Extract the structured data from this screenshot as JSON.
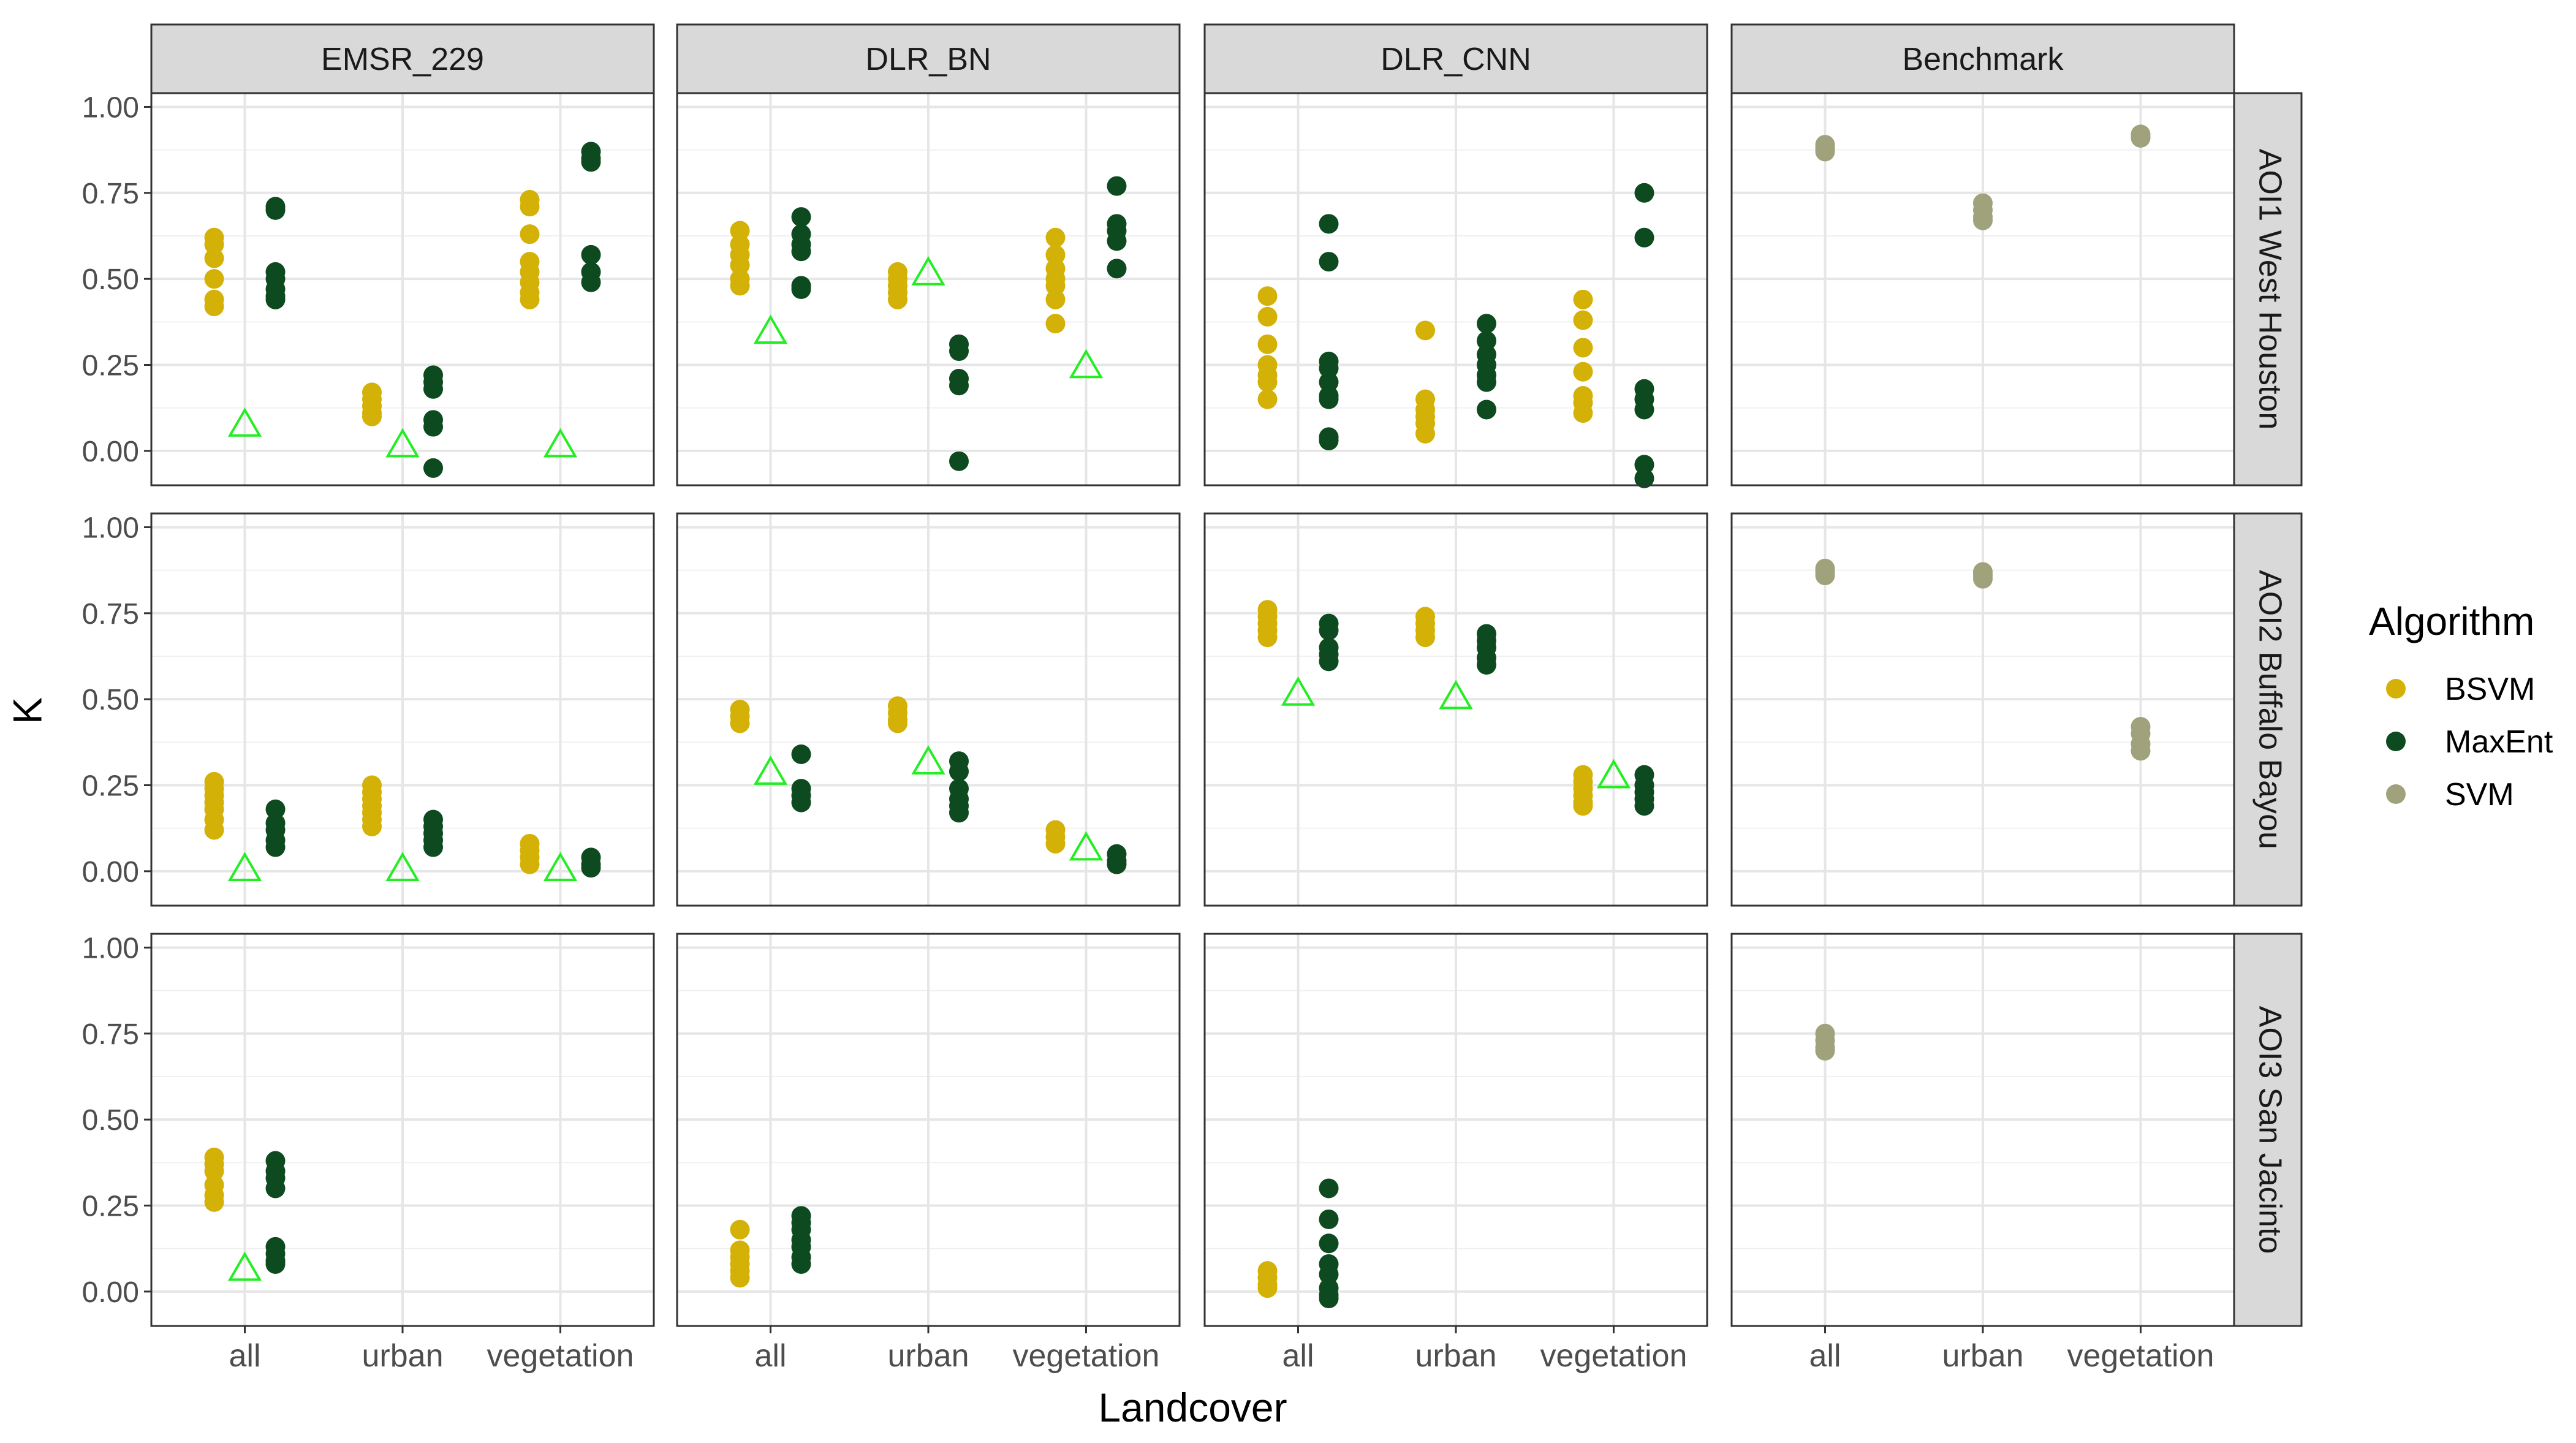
{
  "chart_data": {
    "type": "scatter",
    "xlabel": "Landcover",
    "ylabel": "K",
    "categories": [
      "all",
      "urban",
      "vegetation"
    ],
    "column_facets": [
      "EMSR_229",
      "DLR_BN",
      "DLR_CNN",
      "Benchmark"
    ],
    "row_facets": [
      "AOI1 West Houston",
      "AOI2 Buffalo Bayou",
      "AOI3 San Jacinto"
    ],
    "ylim": [
      -0.1,
      1.04
    ],
    "yticks": [
      0.0,
      0.25,
      0.5,
      0.75,
      1.0
    ],
    "ytick_labels": [
      "0.00",
      "0.25",
      "0.50",
      "0.75",
      "1.00"
    ],
    "grid": true,
    "legend": {
      "title": "Algorithm",
      "position": "right",
      "entries": [
        {
          "name": "BSVM",
          "color": "#d4b106"
        },
        {
          "name": "MaxEnt",
          "color": "#0d4a1f"
        },
        {
          "name": "SVM",
          "color": "#9fa27a"
        }
      ]
    },
    "reference_marker": {
      "shape": "triangle",
      "color": "#22ee22"
    },
    "panels": [
      {
        "row": 0,
        "col": 0,
        "facet": "EMSR_229",
        "region": "AOI1 West Houston",
        "series": [
          {
            "name": "BSVM",
            "points": {
              "all": [
                0.62,
                0.6,
                0.56,
                0.5,
                0.44,
                0.42
              ],
              "urban": [
                0.17,
                0.15,
                0.13,
                0.11,
                0.1
              ],
              "vegetation": [
                0.73,
                0.71,
                0.63,
                0.55,
                0.52,
                0.49,
                0.46,
                0.44
              ]
            }
          },
          {
            "name": "MaxEnt",
            "points": {
              "all": [
                0.71,
                0.7,
                0.52,
                0.5,
                0.47,
                0.45,
                0.44
              ],
              "urban": [
                0.22,
                0.2,
                0.18,
                0.09,
                0.07,
                -0.05
              ],
              "vegetation": [
                0.87,
                0.85,
                0.84,
                0.57,
                0.52,
                0.49
              ]
            }
          }
        ],
        "reference": {
          "all": 0.08,
          "urban": 0.02,
          "vegetation": 0.02
        }
      },
      {
        "row": 0,
        "col": 1,
        "facet": "DLR_BN",
        "region": "AOI1 West Houston",
        "series": [
          {
            "name": "BSVM",
            "points": {
              "all": [
                0.64,
                0.6,
                0.57,
                0.54,
                0.5,
                0.48
              ],
              "urban": [
                0.52,
                0.5,
                0.48,
                0.46,
                0.44
              ],
              "vegetation": [
                0.62,
                0.57,
                0.53,
                0.5,
                0.48,
                0.44,
                0.37
              ]
            }
          },
          {
            "name": "MaxEnt",
            "points": {
              "all": [
                0.68,
                0.63,
                0.6,
                0.58,
                0.48,
                0.47
              ],
              "urban": [
                0.31,
                0.29,
                0.21,
                0.19,
                -0.03
              ],
              "vegetation": [
                0.77,
                0.66,
                0.64,
                0.61,
                0.53
              ]
            }
          }
        ],
        "reference": {
          "all": 0.35,
          "urban": 0.52,
          "vegetation": 0.25
        }
      },
      {
        "row": 0,
        "col": 2,
        "facet": "DLR_CNN",
        "region": "AOI1 West Houston",
        "series": [
          {
            "name": "BSVM",
            "points": {
              "all": [
                0.45,
                0.39,
                0.31,
                0.25,
                0.22,
                0.2,
                0.15
              ],
              "urban": [
                0.35,
                0.15,
                0.12,
                0.1,
                0.08,
                0.05
              ],
              "vegetation": [
                0.44,
                0.38,
                0.3,
                0.23,
                0.16,
                0.14,
                0.11
              ]
            }
          },
          {
            "name": "MaxEnt",
            "points": {
              "all": [
                0.66,
                0.55,
                0.26,
                0.24,
                0.2,
                0.16,
                0.15,
                0.04,
                0.03
              ],
              "urban": [
                0.37,
                0.32,
                0.28,
                0.25,
                0.22,
                0.2,
                0.12
              ],
              "vegetation": [
                0.75,
                0.62,
                0.18,
                0.15,
                0.12,
                -0.04,
                -0.08
              ]
            }
          }
        ],
        "reference": null
      },
      {
        "row": 0,
        "col": 3,
        "facet": "Benchmark",
        "region": "AOI1 West Houston",
        "series": [
          {
            "name": "SVM",
            "points": {
              "all": [
                0.89,
                0.88,
                0.87
              ],
              "urban": [
                0.72,
                0.7,
                0.68,
                0.67
              ],
              "vegetation": [
                0.92,
                0.91
              ]
            }
          }
        ],
        "reference": null
      },
      {
        "row": 1,
        "col": 0,
        "facet": "EMSR_229",
        "region": "AOI2 Buffalo Bayou",
        "series": [
          {
            "name": "BSVM",
            "points": {
              "all": [
                0.26,
                0.24,
                0.22,
                0.2,
                0.18,
                0.15,
                0.12
              ],
              "urban": [
                0.25,
                0.23,
                0.21,
                0.19,
                0.17,
                0.15,
                0.13
              ],
              "vegetation": [
                0.08,
                0.06,
                0.04,
                0.02
              ]
            }
          },
          {
            "name": "MaxEnt",
            "points": {
              "all": [
                0.18,
                0.14,
                0.12,
                0.09,
                0.07
              ],
              "urban": [
                0.15,
                0.13,
                0.11,
                0.09,
                0.07
              ],
              "vegetation": [
                0.04,
                0.02,
                0.01
              ]
            }
          }
        ],
        "reference": {
          "all": 0.01,
          "urban": 0.01,
          "vegetation": 0.01
        }
      },
      {
        "row": 1,
        "col": 1,
        "facet": "DLR_BN",
        "region": "AOI2 Buffalo Bayou",
        "series": [
          {
            "name": "BSVM",
            "points": {
              "all": [
                0.47,
                0.45,
                0.43
              ],
              "urban": [
                0.48,
                0.46,
                0.44,
                0.43
              ],
              "vegetation": [
                0.12,
                0.1,
                0.08
              ]
            }
          },
          {
            "name": "MaxEnt",
            "points": {
              "all": [
                0.34,
                0.24,
                0.22,
                0.2
              ],
              "urban": [
                0.32,
                0.29,
                0.24,
                0.21,
                0.19,
                0.17
              ],
              "vegetation": [
                0.05,
                0.03,
                0.02
              ]
            }
          }
        ],
        "reference": {
          "all": 0.29,
          "urban": 0.32,
          "vegetation": 0.07
        }
      },
      {
        "row": 1,
        "col": 2,
        "facet": "DLR_CNN",
        "region": "AOI2 Buffalo Bayou",
        "series": [
          {
            "name": "BSVM",
            "points": {
              "all": [
                0.76,
                0.74,
                0.72,
                0.7,
                0.68
              ],
              "urban": [
                0.74,
                0.72,
                0.7,
                0.68
              ],
              "vegetation": [
                0.28,
                0.26,
                0.24,
                0.22,
                0.2,
                0.19
              ]
            }
          },
          {
            "name": "MaxEnt",
            "points": {
              "all": [
                0.72,
                0.7,
                0.65,
                0.63,
                0.61
              ],
              "urban": [
                0.69,
                0.67,
                0.65,
                0.62,
                0.6
              ],
              "vegetation": [
                0.28,
                0.25,
                0.23,
                0.21,
                0.19
              ]
            }
          }
        ],
        "reference": {
          "all": 0.52,
          "urban": 0.51,
          "vegetation": 0.28
        }
      },
      {
        "row": 1,
        "col": 3,
        "facet": "Benchmark",
        "region": "AOI2 Buffalo Bayou",
        "series": [
          {
            "name": "SVM",
            "points": {
              "all": [
                0.88,
                0.87,
                0.86
              ],
              "urban": [
                0.87,
                0.86,
                0.85
              ],
              "vegetation": [
                0.42,
                0.4,
                0.37,
                0.35
              ]
            }
          }
        ],
        "reference": null
      },
      {
        "row": 2,
        "col": 0,
        "facet": "EMSR_229",
        "region": "AOI3 San Jacinto",
        "series": [
          {
            "name": "BSVM",
            "points": {
              "all": [
                0.39,
                0.37,
                0.35,
                0.31,
                0.28,
                0.26
              ]
            }
          },
          {
            "name": "MaxEnt",
            "points": {
              "all": [
                0.38,
                0.35,
                0.33,
                0.3,
                0.13,
                0.11,
                0.09,
                0.08
              ]
            }
          }
        ],
        "reference": {
          "all": 0.07
        }
      },
      {
        "row": 2,
        "col": 1,
        "facet": "DLR_BN",
        "region": "AOI3 San Jacinto",
        "series": [
          {
            "name": "BSVM",
            "points": {
              "all": [
                0.18,
                0.12,
                0.1,
                0.08,
                0.06,
                0.04
              ]
            }
          },
          {
            "name": "MaxEnt",
            "points": {
              "all": [
                0.22,
                0.2,
                0.18,
                0.15,
                0.13,
                0.1,
                0.08
              ]
            }
          }
        ],
        "reference": null
      },
      {
        "row": 2,
        "col": 2,
        "facet": "DLR_CNN",
        "region": "AOI3 San Jacinto",
        "series": [
          {
            "name": "BSVM",
            "points": {
              "all": [
                0.06,
                0.04,
                0.02,
                0.01
              ]
            }
          },
          {
            "name": "MaxEnt",
            "points": {
              "all": [
                0.3,
                0.21,
                0.14,
                0.08,
                0.05,
                0.01,
                -0.01,
                -0.02
              ]
            }
          }
        ],
        "reference": null
      },
      {
        "row": 2,
        "col": 3,
        "facet": "Benchmark",
        "region": "AOI3 San Jacinto",
        "series": [
          {
            "name": "SVM",
            "points": {
              "all": [
                0.75,
                0.73,
                0.71,
                0.7
              ]
            }
          }
        ],
        "reference": null
      }
    ]
  }
}
